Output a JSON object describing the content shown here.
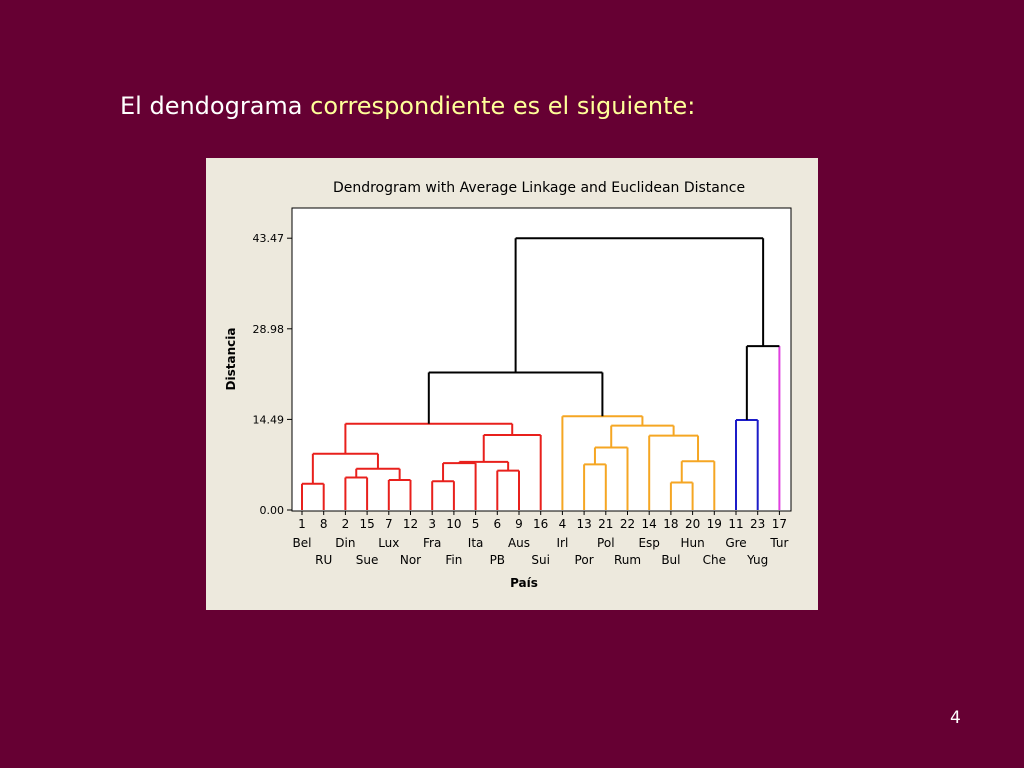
{
  "slide": {
    "title_part1": "El ",
    "title_part2": "dendograma",
    "title_part3": " correspondiente es el siguiente:",
    "page_number": "4"
  },
  "chart_data": {
    "type": "dendrogram",
    "title": "Dendrogram with Average Linkage and Euclidean Distance",
    "xlabel": "País",
    "ylabel": "Distancia",
    "ylim": [
      0,
      48.3
    ],
    "yticks": [
      "0.00",
      "14.49",
      "28.98",
      "43.47"
    ],
    "ytick_values": [
      0,
      14.49,
      28.98,
      43.47
    ],
    "leaves": [
      {
        "id": "1",
        "name": "Bel"
      },
      {
        "id": "8",
        "name": "RU"
      },
      {
        "id": "2",
        "name": "Din"
      },
      {
        "id": "15",
        "name": "Sue"
      },
      {
        "id": "7",
        "name": "Lux"
      },
      {
        "id": "12",
        "name": "Nor"
      },
      {
        "id": "3",
        "name": "Fra"
      },
      {
        "id": "10",
        "name": "Fin"
      },
      {
        "id": "5",
        "name": "Ita"
      },
      {
        "id": "6",
        "name": "PB"
      },
      {
        "id": "9",
        "name": "Aus"
      },
      {
        "id": "16",
        "name": "Sui"
      },
      {
        "id": "4",
        "name": "Irl"
      },
      {
        "id": "13",
        "name": "Por"
      },
      {
        "id": "21",
        "name": "Pol"
      },
      {
        "id": "22",
        "name": "Rum"
      },
      {
        "id": "14",
        "name": "Esp"
      },
      {
        "id": "18",
        "name": "Bul"
      },
      {
        "id": "20",
        "name": "Hun"
      },
      {
        "id": "19",
        "name": "Che"
      },
      {
        "id": "11",
        "name": "Gre"
      },
      {
        "id": "23",
        "name": "Yug"
      },
      {
        "id": "17",
        "name": "Tur"
      }
    ],
    "colors": {
      "red": "#e8201c",
      "orange": "#f5a623",
      "blue": "#1c1cc8",
      "magenta": "#e040e0",
      "black": "#000000"
    },
    "merges": [
      {
        "a": "L0",
        "b": "L1",
        "height": 4.2,
        "color": "red"
      },
      {
        "a": "L2",
        "b": "L3",
        "height": 5.2,
        "color": "red"
      },
      {
        "a": "L4",
        "b": "L5",
        "height": 4.8,
        "color": "red"
      },
      {
        "a": "M1",
        "b": "M2",
        "height": 6.6,
        "color": "red"
      },
      {
        "a": "M0",
        "b": "M3",
        "height": 9.0,
        "color": "red"
      },
      {
        "a": "L6",
        "b": "L7",
        "height": 4.6,
        "color": "red"
      },
      {
        "a": "M5",
        "b": "L8",
        "height": 7.5,
        "color": "red"
      },
      {
        "a": "L9",
        "b": "L10",
        "height": 6.3,
        "color": "red"
      },
      {
        "a": "M6",
        "b": "M7",
        "height": 7.7,
        "color": "red"
      },
      {
        "a": "M8",
        "b": "L11",
        "height": 12.0,
        "color": "red"
      },
      {
        "a": "M4",
        "b": "M9",
        "height": 13.8,
        "color": "red"
      },
      {
        "a": "L13",
        "b": "L14",
        "height": 7.3,
        "color": "orange"
      },
      {
        "a": "M11",
        "b": "L15",
        "height": 10.0,
        "color": "orange"
      },
      {
        "a": "L17",
        "b": "L18",
        "height": 4.4,
        "color": "orange"
      },
      {
        "a": "M13",
        "b": "L19",
        "height": 7.8,
        "color": "orange"
      },
      {
        "a": "L16",
        "b": "M14",
        "height": 11.9,
        "color": "orange"
      },
      {
        "a": "M12",
        "b": "M15",
        "height": 13.5,
        "color": "orange"
      },
      {
        "a": "L12",
        "b": "M16",
        "height": 15.0,
        "color": "orange"
      },
      {
        "a": "M10",
        "b": "M17",
        "height": 22.0,
        "color": "black"
      },
      {
        "a": "L20",
        "b": "L21",
        "height": 14.4,
        "color": "blue"
      },
      {
        "a": "M19",
        "b": "L22",
        "height": 26.2,
        "color": "black"
      },
      {
        "a": "M18",
        "b": "M20",
        "height": 43.47,
        "color": "black"
      }
    ],
    "leaf_colors": [
      "red",
      "red",
      "red",
      "red",
      "red",
      "red",
      "red",
      "red",
      "red",
      "red",
      "red",
      "red",
      "orange",
      "orange",
      "orange",
      "orange",
      "orange",
      "orange",
      "orange",
      "orange",
      "blue",
      "blue",
      "magenta"
    ]
  }
}
